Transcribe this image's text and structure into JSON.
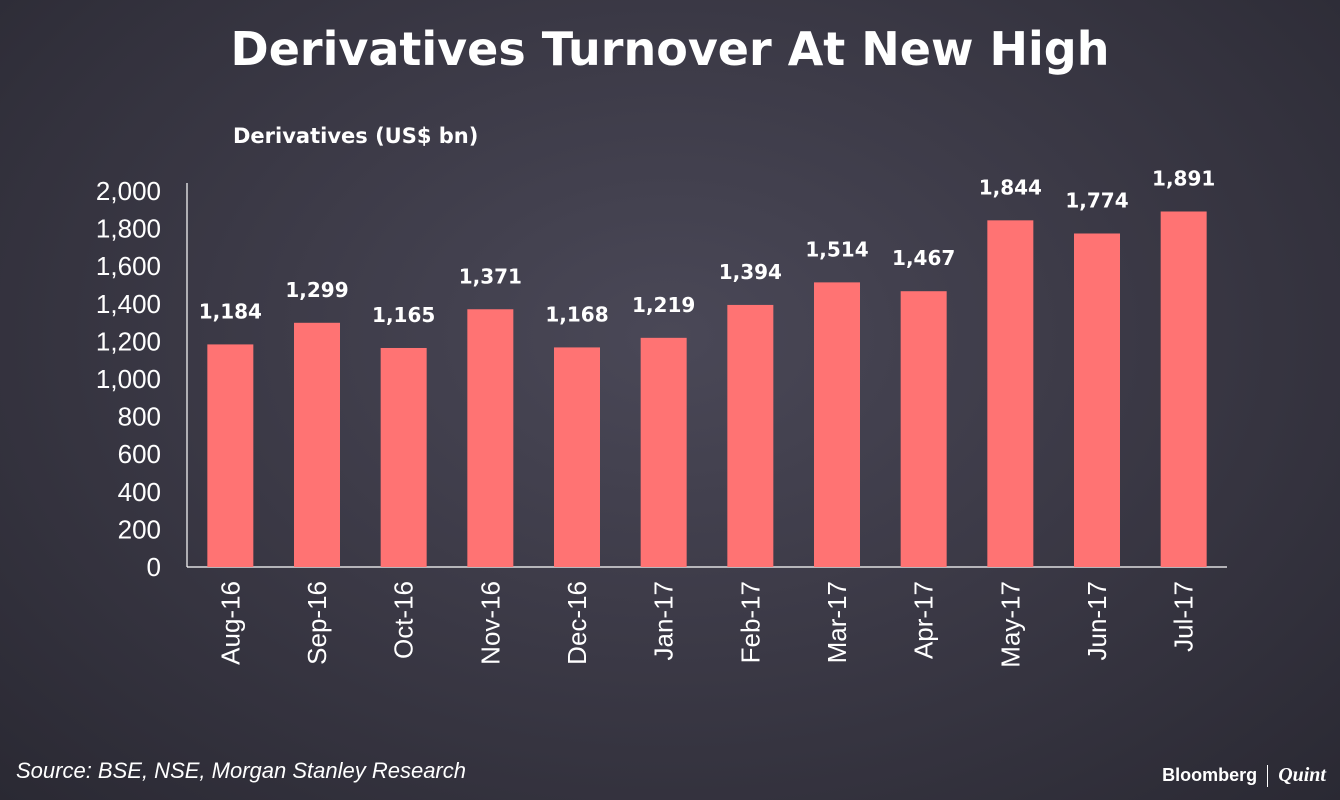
{
  "title": "Derivatives Turnover At New High",
  "source": "Source: BSE, NSE, Morgan Stanley Research",
  "brand": {
    "name1": "Bloomberg",
    "name2": "Quint"
  },
  "colors": {
    "bar": "#ff7373",
    "text": "#ffffff",
    "axis": "#ffffff"
  },
  "chart_data": {
    "type": "bar",
    "title": "Derivatives Turnover At New High",
    "ylabel": "Derivatives (US$ bn)",
    "xlabel": "",
    "categories": [
      "Aug-16",
      "Sep-16",
      "Oct-16",
      "Nov-16",
      "Dec-16",
      "Jan-17",
      "Feb-17",
      "Mar-17",
      "Apr-17",
      "May-17",
      "Jun-17",
      "Jul-17"
    ],
    "values": [
      1184,
      1299,
      1165,
      1371,
      1168,
      1219,
      1394,
      1514,
      1467,
      1844,
      1774,
      1891
    ],
    "value_labels": [
      "1,184",
      "1,299",
      "1,165",
      "1,371",
      "1,168",
      "1,219",
      "1,394",
      "1,514",
      "1,467",
      "1,844",
      "1,774",
      "1,891"
    ],
    "ylim": [
      0,
      2000
    ],
    "yticks": [
      0,
      200,
      400,
      600,
      800,
      1000,
      1200,
      1400,
      1600,
      1800,
      2000
    ],
    "ytick_labels": [
      "0",
      "200",
      "400",
      "600",
      "800",
      "1,000",
      "1,200",
      "1,400",
      "1,600",
      "1,800",
      "2,000"
    ],
    "grid": false,
    "legend": "none"
  }
}
